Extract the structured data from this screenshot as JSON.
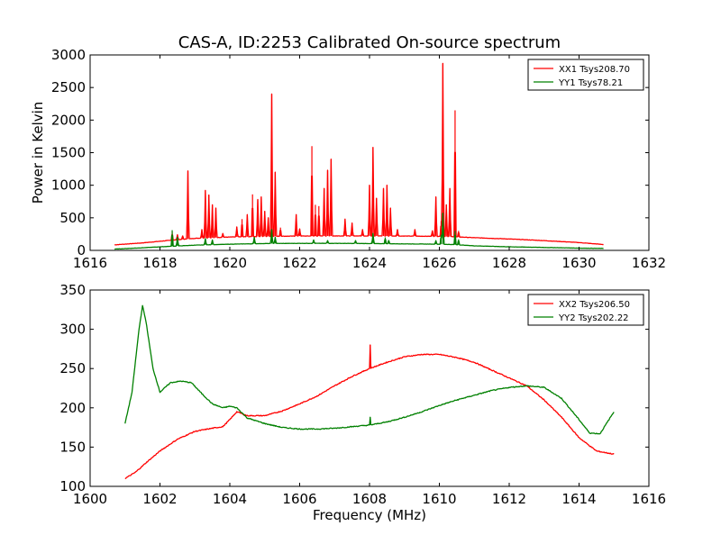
{
  "title": "CAS-A, ID:2253 Calibrated On-source spectrum",
  "colors": {
    "xx": "#ff0000",
    "yy": "#008000"
  },
  "chart_data": [
    {
      "type": "line",
      "xlabel": "",
      "ylabel": "Power in Kelvin",
      "xlim": [
        1616,
        1632
      ],
      "ylim": [
        0,
        3000
      ],
      "xticks": [
        1616,
        1618,
        1620,
        1622,
        1624,
        1626,
        1628,
        1630,
        1632
      ],
      "yticks": [
        0,
        500,
        1000,
        1500,
        2000,
        2500,
        3000
      ],
      "legend_position": "top-right",
      "series": [
        {
          "name": "XX1 Tsys208.70",
          "color": "#ff0000",
          "x": [
            1616.7,
            1617.5,
            1618.2,
            1619.0,
            1620.0,
            1621.0,
            1622.0,
            1623.0,
            1624.0,
            1625.0,
            1626.0,
            1626.4,
            1627.0,
            1628.0,
            1629.0,
            1630.0,
            1630.7
          ],
          "y": [
            85,
            115,
            150,
            185,
            205,
            215,
            220,
            222,
            222,
            220,
            215,
            210,
            195,
            175,
            150,
            120,
            90
          ],
          "spikes": [
            [
              1618.35,
              280
            ],
            [
              1618.5,
              240
            ],
            [
              1618.65,
              230
            ],
            [
              1618.8,
              1220
            ],
            [
              1619.2,
              320
            ],
            [
              1619.3,
              920
            ],
            [
              1619.4,
              850
            ],
            [
              1619.5,
              700
            ],
            [
              1619.6,
              650
            ],
            [
              1619.8,
              260
            ],
            [
              1620.2,
              360
            ],
            [
              1620.35,
              480
            ],
            [
              1620.5,
              550
            ],
            [
              1620.65,
              860
            ],
            [
              1620.8,
              780
            ],
            [
              1620.9,
              820
            ],
            [
              1621.0,
              600
            ],
            [
              1621.1,
              500
            ],
            [
              1621.2,
              2400
            ],
            [
              1621.3,
              1200
            ],
            [
              1621.45,
              350
            ],
            [
              1621.9,
              550
            ],
            [
              1622.0,
              330
            ],
            [
              1622.35,
              1600
            ],
            [
              1622.45,
              700
            ],
            [
              1622.55,
              680
            ],
            [
              1622.7,
              950
            ],
            [
              1622.8,
              1230
            ],
            [
              1622.9,
              1400
            ],
            [
              1623.3,
              480
            ],
            [
              1623.5,
              420
            ],
            [
              1623.8,
              320
            ],
            [
              1624.0,
              1000
            ],
            [
              1624.1,
              1580
            ],
            [
              1624.2,
              800
            ],
            [
              1624.4,
              950
            ],
            [
              1624.5,
              1000
            ],
            [
              1624.6,
              650
            ],
            [
              1624.8,
              320
            ],
            [
              1625.3,
              320
            ],
            [
              1625.8,
              300
            ],
            [
              1625.9,
              820
            ],
            [
              1626.05,
              450
            ],
            [
              1626.1,
              2870
            ],
            [
              1626.2,
              700
            ],
            [
              1626.3,
              950
            ],
            [
              1626.45,
              2150
            ],
            [
              1626.55,
              300
            ]
          ]
        },
        {
          "name": "YY1 Tsys78.21",
          "color": "#008000",
          "x": [
            1616.7,
            1617.5,
            1618.2,
            1619.0,
            1620.0,
            1621.0,
            1622.0,
            1623.0,
            1624.0,
            1625.0,
            1626.0,
            1626.4,
            1627.0,
            1628.0,
            1629.0,
            1630.0,
            1630.7
          ],
          "y": [
            20,
            40,
            60,
            80,
            95,
            105,
            108,
            108,
            105,
            100,
            95,
            90,
            70,
            55,
            45,
            35,
            30
          ],
          "spikes": [
            [
              1618.35,
              310
            ],
            [
              1618.5,
              200
            ],
            [
              1619.3,
              180
            ],
            [
              1619.5,
              160
            ],
            [
              1620.7,
              200
            ],
            [
              1621.2,
              320
            ],
            [
              1621.3,
              200
            ],
            [
              1622.4,
              160
            ],
            [
              1622.8,
              150
            ],
            [
              1623.6,
              150
            ],
            [
              1624.1,
              260
            ],
            [
              1624.45,
              200
            ],
            [
              1624.55,
              160
            ],
            [
              1625.9,
              150
            ],
            [
              1626.05,
              240
            ],
            [
              1626.1,
              570
            ],
            [
              1626.45,
              300
            ],
            [
              1626.55,
              170
            ]
          ]
        }
      ]
    },
    {
      "type": "line",
      "xlabel": "Frequency (MHz)",
      "ylabel": "",
      "xlim": [
        1600,
        1616
      ],
      "ylim": [
        100,
        350
      ],
      "xticks": [
        1600,
        1602,
        1604,
        1606,
        1608,
        1610,
        1612,
        1614,
        1616
      ],
      "yticks": [
        100,
        150,
        200,
        250,
        300,
        350
      ],
      "legend_position": "top-right",
      "series": [
        {
          "name": "XX2 Tsys206.50",
          "color": "#ff0000",
          "x": [
            1601.0,
            1601.3,
            1601.6,
            1602.0,
            1602.5,
            1603.0,
            1603.5,
            1603.8,
            1604.0,
            1604.2,
            1604.5,
            1605.0,
            1605.5,
            1606.0,
            1606.5,
            1607.0,
            1607.5,
            1608.0,
            1608.5,
            1609.0,
            1609.5,
            1610.0,
            1610.5,
            1611.0,
            1611.5,
            1612.0,
            1612.5,
            1613.0,
            1613.5,
            1614.0,
            1614.5,
            1615.0
          ],
          "y": [
            110,
            118,
            130,
            145,
            160,
            170,
            174,
            176,
            185,
            195,
            190,
            190,
            196,
            205,
            215,
            228,
            240,
            250,
            258,
            265,
            268,
            268,
            264,
            258,
            248,
            238,
            228,
            210,
            188,
            162,
            145,
            141
          ],
          "spikes": [
            [
              1608.02,
              280
            ]
          ]
        },
        {
          "name": "YY2 Tsys202.22",
          "color": "#008000",
          "x": [
            1601.0,
            1601.2,
            1601.4,
            1601.5,
            1601.6,
            1601.8,
            1602.0,
            1602.3,
            1602.6,
            1602.9,
            1603.2,
            1603.5,
            1603.8,
            1604.0,
            1604.2,
            1604.5,
            1605.0,
            1605.5,
            1606.0,
            1606.5,
            1607.0,
            1607.5,
            1608.0,
            1608.5,
            1609.0,
            1609.5,
            1610.0,
            1610.5,
            1611.0,
            1611.5,
            1612.0,
            1612.5,
            1613.0,
            1613.5,
            1614.0,
            1614.3,
            1614.6,
            1615.0
          ],
          "y": [
            180,
            220,
            300,
            330,
            310,
            250,
            220,
            232,
            234,
            232,
            218,
            205,
            200,
            202,
            200,
            187,
            180,
            175,
            173,
            173,
            174,
            176,
            178,
            182,
            188,
            195,
            203,
            210,
            216,
            222,
            226,
            228,
            226,
            212,
            185,
            168,
            167,
            195
          ],
          "spikes": [
            [
              1608.02,
              188
            ]
          ]
        }
      ]
    }
  ]
}
